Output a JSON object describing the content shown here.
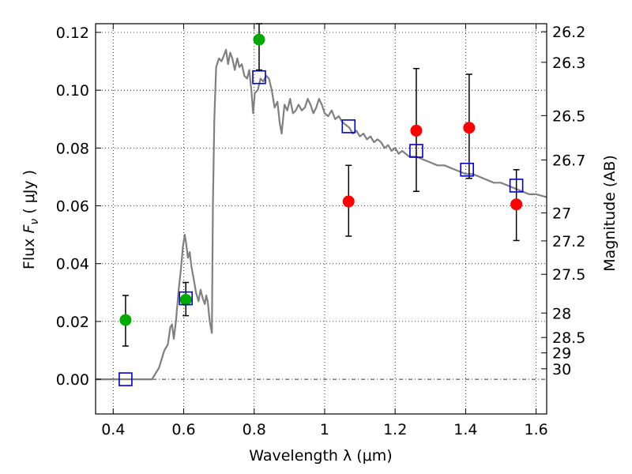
{
  "chart_data": {
    "type": "scatter",
    "title": "",
    "xlabel": "Wavelength  λ (μm)",
    "ylabel": "Flux  Fν  ( μJy )",
    "ylabel_parts": {
      "pre": "Flux ",
      "symbol": "F",
      "sub": "ν",
      "post": "  ( μJy )"
    },
    "y2label": "Magnitude (AB)",
    "xlim": [
      0.35,
      1.63
    ],
    "ylim": [
      -0.012,
      0.123
    ],
    "grid": true,
    "colors": {
      "model": "#808080",
      "green": "#00aa00",
      "red": "#ff0000",
      "squares": "#0000cc",
      "errorbar": "#000000"
    },
    "x_ticks": [
      {
        "value": 0.4,
        "label": "0.4"
      },
      {
        "value": 0.6,
        "label": "0.6"
      },
      {
        "value": 0.8,
        "label": "0.8"
      },
      {
        "value": 1.0,
        "label": "1"
      },
      {
        "value": 1.2,
        "label": "1.2"
      },
      {
        "value": 1.4,
        "label": "1.4"
      },
      {
        "value": 1.6,
        "label": "1.6"
      }
    ],
    "y_ticks": [
      {
        "value": 0.0,
        "label": "0.00"
      },
      {
        "value": 0.02,
        "label": "0.02"
      },
      {
        "value": 0.04,
        "label": "0.04"
      },
      {
        "value": 0.06,
        "label": "0.06"
      },
      {
        "value": 0.08,
        "label": "0.08"
      },
      {
        "value": 0.1,
        "label": "0.10"
      },
      {
        "value": 0.12,
        "label": "0.12"
      }
    ],
    "y2_ticks": [
      {
        "mag": 26.2,
        "label": "26.2"
      },
      {
        "mag": 26.3,
        "label": "26.3"
      },
      {
        "mag": 26.5,
        "label": "26.5"
      },
      {
        "mag": 26.7,
        "label": "26.7"
      },
      {
        "mag": 27.0,
        "label": "27"
      },
      {
        "mag": 27.2,
        "label": "27.2"
      },
      {
        "mag": 27.5,
        "label": "27.5"
      },
      {
        "mag": 28.0,
        "label": "28"
      },
      {
        "mag": 28.5,
        "label": "28.5"
      },
      {
        "mag": 29.0,
        "label": "29"
      },
      {
        "mag": 30.0,
        "label": "30"
      }
    ],
    "model_spectrum": [
      [
        0.35,
        0.0
      ],
      [
        0.51,
        0.0
      ],
      [
        0.53,
        0.004
      ],
      [
        0.545,
        0.01
      ],
      [
        0.555,
        0.012
      ],
      [
        0.562,
        0.018
      ],
      [
        0.567,
        0.019
      ],
      [
        0.572,
        0.014
      ],
      [
        0.578,
        0.02
      ],
      [
        0.585,
        0.03
      ],
      [
        0.592,
        0.038
      ],
      [
        0.598,
        0.046
      ],
      [
        0.603,
        0.05
      ],
      [
        0.607,
        0.047
      ],
      [
        0.612,
        0.042
      ],
      [
        0.617,
        0.044
      ],
      [
        0.622,
        0.039
      ],
      [
        0.628,
        0.035
      ],
      [
        0.635,
        0.03
      ],
      [
        0.642,
        0.027
      ],
      [
        0.648,
        0.031
      ],
      [
        0.654,
        0.028
      ],
      [
        0.66,
        0.026
      ],
      [
        0.664,
        0.029
      ],
      [
        0.668,
        0.027
      ],
      [
        0.674,
        0.02
      ],
      [
        0.68,
        0.016
      ],
      [
        0.683,
        0.06
      ],
      [
        0.687,
        0.09
      ],
      [
        0.692,
        0.108
      ],
      [
        0.7,
        0.111
      ],
      [
        0.707,
        0.11
      ],
      [
        0.714,
        0.112
      ],
      [
        0.72,
        0.114
      ],
      [
        0.726,
        0.109
      ],
      [
        0.732,
        0.113
      ],
      [
        0.738,
        0.111
      ],
      [
        0.745,
        0.107
      ],
      [
        0.752,
        0.111
      ],
      [
        0.758,
        0.108
      ],
      [
        0.765,
        0.109
      ],
      [
        0.772,
        0.105
      ],
      [
        0.78,
        0.104
      ],
      [
        0.786,
        0.107
      ],
      [
        0.792,
        0.1
      ],
      [
        0.797,
        0.092
      ],
      [
        0.802,
        0.099
      ],
      [
        0.81,
        0.1
      ],
      [
        0.818,
        0.104
      ],
      [
        0.826,
        0.103
      ],
      [
        0.834,
        0.105
      ],
      [
        0.842,
        0.104
      ],
      [
        0.85,
        0.1
      ],
      [
        0.858,
        0.094
      ],
      [
        0.866,
        0.096
      ],
      [
        0.872,
        0.089
      ],
      [
        0.878,
        0.085
      ],
      [
        0.886,
        0.095
      ],
      [
        0.894,
        0.093
      ],
      [
        0.902,
        0.097
      ],
      [
        0.91,
        0.092
      ],
      [
        0.918,
        0.093
      ],
      [
        0.926,
        0.095
      ],
      [
        0.935,
        0.093
      ],
      [
        0.944,
        0.094
      ],
      [
        0.952,
        0.097
      ],
      [
        0.96,
        0.095
      ],
      [
        0.968,
        0.092
      ],
      [
        0.976,
        0.094
      ],
      [
        0.984,
        0.097
      ],
      [
        0.992,
        0.095
      ],
      [
        1.0,
        0.092
      ],
      [
        1.01,
        0.091
      ],
      [
        1.02,
        0.093
      ],
      [
        1.03,
        0.09
      ],
      [
        1.04,
        0.091
      ],
      [
        1.05,
        0.089
      ],
      [
        1.06,
        0.088
      ],
      [
        1.07,
        0.087
      ],
      [
        1.08,
        0.085
      ],
      [
        1.09,
        0.086
      ],
      [
        1.1,
        0.084
      ],
      [
        1.11,
        0.085
      ],
      [
        1.12,
        0.083
      ],
      [
        1.13,
        0.084
      ],
      [
        1.14,
        0.082
      ],
      [
        1.15,
        0.083
      ],
      [
        1.16,
        0.082
      ],
      [
        1.17,
        0.08
      ],
      [
        1.18,
        0.081
      ],
      [
        1.19,
        0.079
      ],
      [
        1.2,
        0.08
      ],
      [
        1.21,
        0.078
      ],
      [
        1.22,
        0.079
      ],
      [
        1.23,
        0.078
      ],
      [
        1.24,
        0.077
      ],
      [
        1.26,
        0.077
      ],
      [
        1.28,
        0.076
      ],
      [
        1.3,
        0.075
      ],
      [
        1.32,
        0.074
      ],
      [
        1.34,
        0.074
      ],
      [
        1.36,
        0.073
      ],
      [
        1.38,
        0.072
      ],
      [
        1.4,
        0.071
      ],
      [
        1.42,
        0.071
      ],
      [
        1.44,
        0.07
      ],
      [
        1.46,
        0.069
      ],
      [
        1.48,
        0.068
      ],
      [
        1.5,
        0.068
      ],
      [
        1.52,
        0.067
      ],
      [
        1.54,
        0.066
      ],
      [
        1.56,
        0.065
      ],
      [
        1.58,
        0.064
      ],
      [
        1.6,
        0.064
      ],
      [
        1.63,
        0.063
      ]
    ],
    "green_points": [
      {
        "x": 0.435,
        "y": 0.0205,
        "lo": 0.0115,
        "hi": 0.029
      },
      {
        "x": 0.606,
        "y": 0.0275,
        "lo": 0.022,
        "hi": 0.0335
      },
      {
        "x": 0.814,
        "y": 0.1175,
        "lo": 0.107,
        "hi": 0.123
      }
    ],
    "red_points": [
      {
        "x": 1.068,
        "y": 0.0615,
        "lo": 0.0495,
        "hi": 0.074
      },
      {
        "x": 1.26,
        "y": 0.086,
        "lo": 0.065,
        "hi": 0.1075
      },
      {
        "x": 1.41,
        "y": 0.087,
        "lo": 0.0695,
        "hi": 0.1055
      },
      {
        "x": 1.544,
        "y": 0.0605,
        "lo": 0.048,
        "hi": 0.0725
      }
    ],
    "square_points": [
      {
        "x": 0.435,
        "y": 0.0
      },
      {
        "x": 0.606,
        "y": 0.028
      },
      {
        "x": 0.814,
        "y": 0.1045
      },
      {
        "x": 1.068,
        "y": 0.0875
      },
      {
        "x": 1.26,
        "y": 0.079
      },
      {
        "x": 1.404,
        "y": 0.0725
      },
      {
        "x": 1.544,
        "y": 0.067
      }
    ]
  }
}
